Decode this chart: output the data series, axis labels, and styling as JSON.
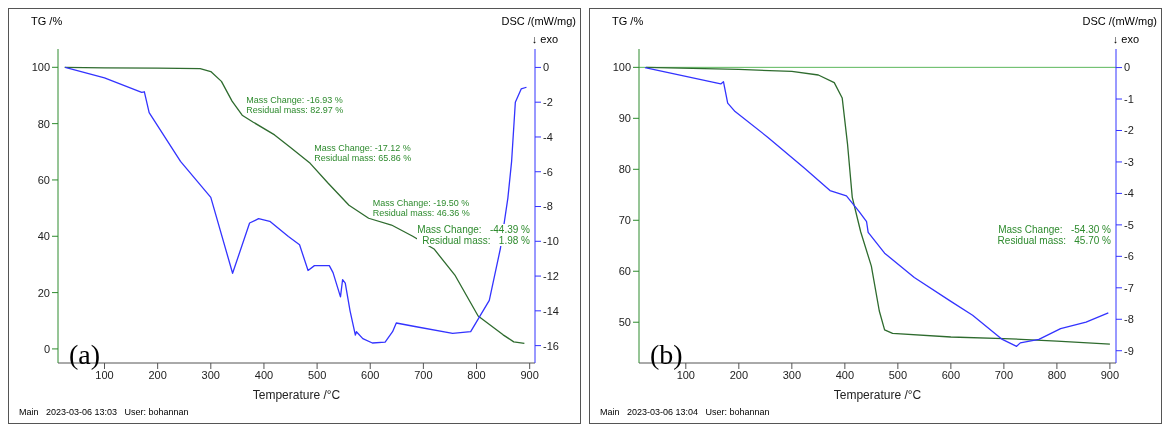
{
  "chart_data": [
    {
      "type": "line",
      "title": "(a)",
      "xlabel": "Temperature /°C",
      "ylabel": "TG /%",
      "y2label": "DSC /(mW/mg)",
      "xlim": [
        12.5,
        910
      ],
      "xticks": [
        100,
        200,
        300,
        400,
        500,
        600,
        700,
        800,
        900
      ],
      "ylim": [
        -5,
        106.5
      ],
      "yticks": [
        0,
        20,
        40,
        60,
        80,
        100
      ],
      "y2lim": [
        -17,
        1.06
      ],
      "y2ticks": [
        0,
        -2,
        -4,
        -6,
        -8,
        -10,
        -12,
        -14,
        -16
      ],
      "grid": false,
      "marker": "none",
      "line_style": "solid",
      "series": [
        {
          "color": "#2e6b2e",
          "x": [
            25,
            100,
            200,
            280,
            300,
            320,
            340,
            359,
            380,
            420,
            450,
            487,
            520,
            560,
            597,
            640,
            680,
            720,
            760,
            803,
            850,
            870,
            890
          ],
          "values": [
            100,
            99.8,
            99.7,
            99.5,
            98.5,
            95,
            88,
            83,
            80.5,
            76,
            71.5,
            65.9,
            59,
            51,
            46.4,
            44,
            40,
            35.5,
            26,
            11.7,
            5,
            2.5,
            2
          ]
        },
        {
          "color": "#3333ff",
          "axis": "y2",
          "x": [
            26,
            100,
            170,
            175,
            184,
            243,
            300,
            341,
            373,
            390,
            411,
            446,
            467,
            483,
            495,
            523,
            530,
            544,
            548,
            553,
            562,
            572,
            574,
            586,
            604,
            628,
            642,
            649,
            684,
            755,
            789,
            824,
            845,
            859,
            866,
            873,
            884,
            894
          ],
          "values": [
            0,
            -0.6,
            -1.44,
            -1.4,
            -2.6,
            -5.4,
            -7.47,
            -11.84,
            -8.95,
            -8.7,
            -8.85,
            -9.73,
            -10.2,
            -11.68,
            -11.4,
            -11.4,
            -11.8,
            -13.2,
            -12.2,
            -12.4,
            -14,
            -15.4,
            -15.2,
            -15.6,
            -15.85,
            -15.8,
            -15.2,
            -14.7,
            -14.9,
            -15.3,
            -15.2,
            -13.4,
            -10.4,
            -7.5,
            -5.4,
            -2,
            -1.24,
            -1.14
          ]
        }
      ],
      "annotations": [
        "↓ exo",
        "Main   2023-03-06 13:03   User: bohannan",
        {
          "text": "Mass Change:   -16.93 %\nResidual mass:   82.97 %",
          "x": 359,
          "y": 82.97
        },
        {
          "text": "Mass Change:   -17.12 %\nResidual mass:   65.86 %",
          "x": 487,
          "y": 65.86
        },
        {
          "text": "Mass Change:   -19.50 %\nResidual mass:   46.36 %",
          "x": 597,
          "y": 46.36
        },
        "Mass Change:   -44.39 %\nResidual mass:   1.98 %"
      ]
    },
    {
      "type": "line",
      "title": "(b)",
      "xlabel": "Temperature /°C",
      "ylabel": "TG /%",
      "y2label": "DSC /(mW/mg)",
      "xlim": [
        11.7,
        911.5
      ],
      "xticks": [
        100,
        200,
        300,
        400,
        500,
        600,
        700,
        800,
        900
      ],
      "ylim": [
        42,
        103.6
      ],
      "yticks": [
        50,
        60,
        70,
        80,
        90,
        100
      ],
      "y2lim": [
        -9.39,
        0.59
      ],
      "y2ticks": [
        0,
        -1,
        -2,
        -3,
        -4,
        -5,
        -6,
        -7,
        -8,
        -9
      ],
      "grid": false,
      "marker": "none",
      "line_style": "solid",
      "ref_lines": [
        {
          "axis": "y",
          "value": 100,
          "color": "#5cb85c"
        }
      ],
      "series": [
        {
          "color": "#2e6b2e",
          "x": [
            25,
            200,
            300,
            350,
            380,
            395,
            405,
            414,
            430,
            450,
            465,
            475,
            490,
            600,
            700,
            800,
            900
          ],
          "values": [
            100,
            99.6,
            99.2,
            98.5,
            97,
            94,
            85,
            74.5,
            67.7,
            61,
            52.2,
            48.5,
            47.8,
            47.1,
            46.8,
            46.3,
            45.7
          ]
        },
        {
          "color": "#3333ff",
          "axis": "y2",
          "x": [
            23,
            166,
            171,
            179,
            193,
            255,
            324,
            372,
            403,
            427,
            441,
            444,
            475,
            531,
            600,
            641,
            697,
            724,
            731,
            766,
            807,
            855,
            897
          ],
          "values": [
            0,
            -0.52,
            -0.45,
            -1.13,
            -1.4,
            -2.22,
            -3.2,
            -3.91,
            -4.08,
            -4.58,
            -4.9,
            -5.24,
            -5.9,
            -6.67,
            -7.43,
            -7.87,
            -8.64,
            -8.86,
            -8.75,
            -8.64,
            -8.3,
            -8.09,
            -7.8
          ]
        }
      ],
      "annotations": [
        "↓ exo",
        "Main   2023-03-06 13:04   User: bohannan",
        "Mass Change:   -54.30 %\nResidual mass:   45.70 %"
      ]
    }
  ]
}
